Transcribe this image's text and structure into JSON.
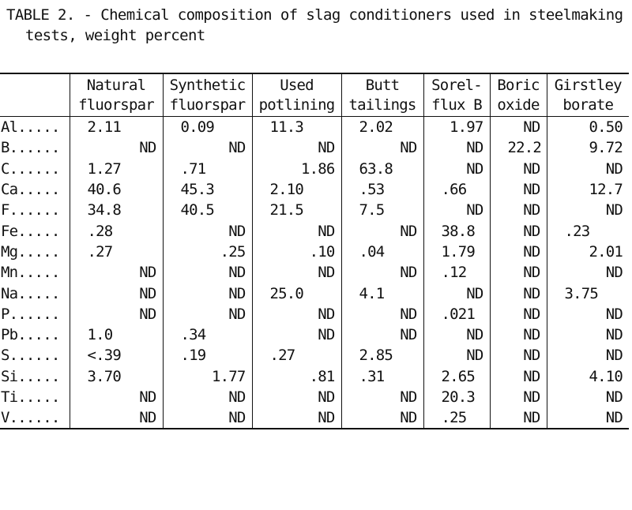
{
  "caption": {
    "line1": "TABLE 2. - Chemical composition of slag conditioners used in steelmaking",
    "line2": "tests, weight percent"
  },
  "columns": [
    {
      "line1": "",
      "line2": ""
    },
    {
      "line1": "Natural",
      "line2": "fluorspar"
    },
    {
      "line1": "Synthetic",
      "line2": "fluorspar"
    },
    {
      "line1": "Used",
      "line2": "potlining"
    },
    {
      "line1": "Butt",
      "line2": "tailings"
    },
    {
      "line1": "Sorel-",
      "line2": "flux B"
    },
    {
      "line1": "Boric",
      "line2": "oxide"
    },
    {
      "line1": "Girstley",
      "line2": "borate"
    }
  ],
  "rows": [
    {
      "element": "Al.....",
      "values": [
        "2.11",
        "0.09",
        "11.3",
        "2.02",
        "1.97",
        "ND",
        "0.50"
      ]
    },
    {
      "element": "B......",
      "values": [
        "ND",
        "ND",
        "ND",
        "ND",
        "ND",
        "22.2",
        "9.72"
      ]
    },
    {
      "element": "C......",
      "values": [
        "1.27",
        ".71",
        "1.86",
        "63.8",
        "ND",
        "ND",
        "ND"
      ]
    },
    {
      "element": "Ca.....",
      "values": [
        "40.6",
        "45.3",
        "2.10",
        ".53",
        ".66",
        "ND",
        "12.7"
      ]
    },
    {
      "element": "F......",
      "values": [
        "34.8",
        "40.5",
        "21.5",
        "7.5",
        "ND",
        "ND",
        "ND"
      ]
    },
    {
      "element": "Fe.....",
      "values": [
        ".28",
        "ND",
        "ND",
        "ND",
        "38.8",
        "ND",
        ".23"
      ]
    },
    {
      "element": "Mg.....",
      "values": [
        ".27",
        ".25",
        ".10",
        ".04",
        "1.79",
        "ND",
        "2.01"
      ]
    },
    {
      "element": "Mn.....",
      "values": [
        "ND",
        "ND",
        "ND",
        "ND",
        ".12",
        "ND",
        "ND"
      ]
    },
    {
      "element": "Na.....",
      "values": [
        "ND",
        "ND",
        "25.0",
        "4.1",
        "ND",
        "ND",
        "3.75"
      ]
    },
    {
      "element": "P......",
      "values": [
        "ND",
        "ND",
        "ND",
        "ND",
        ".021",
        "ND",
        "ND"
      ]
    },
    {
      "element": "Pb.....",
      "values": [
        "1.0",
        ".34",
        "ND",
        "ND",
        "ND",
        "ND",
        "ND"
      ]
    },
    {
      "element": "S......",
      "values": [
        "<.39",
        ".19",
        ".27",
        "2.85",
        "ND",
        "ND",
        "ND"
      ]
    },
    {
      "element": "Si.....",
      "values": [
        "3.70",
        "1.77",
        ".81",
        ".31",
        "2.65",
        "ND",
        "4.10"
      ]
    },
    {
      "element": "Ti.....",
      "values": [
        "ND",
        "ND",
        "ND",
        "ND",
        "20.3",
        "ND",
        "ND"
      ]
    },
    {
      "element": "V......",
      "values": [
        "ND",
        "ND",
        "ND",
        "ND",
        ".25",
        "ND",
        "ND"
      ]
    }
  ]
}
